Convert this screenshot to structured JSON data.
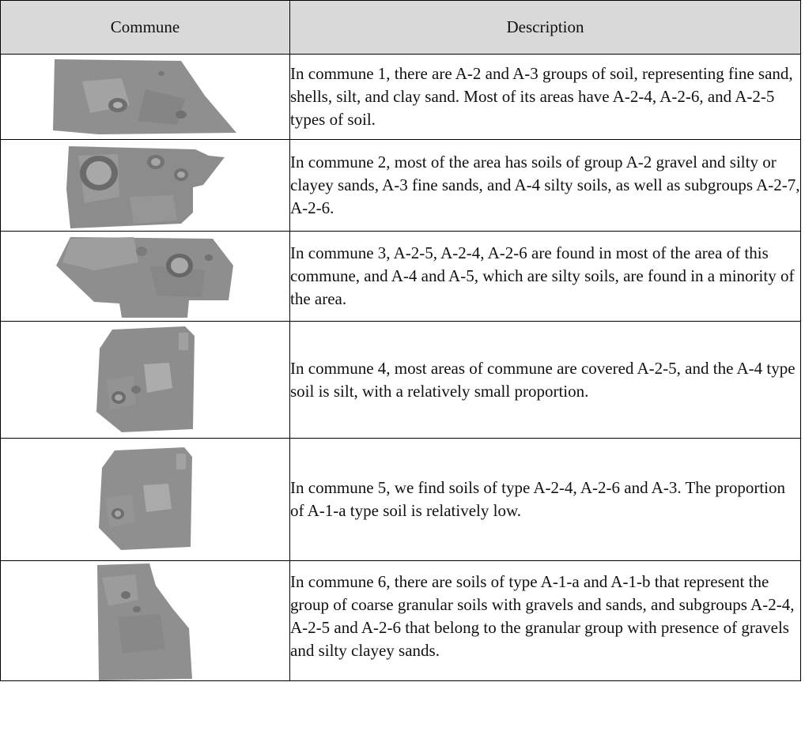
{
  "table": {
    "headers": {
      "commune": "Commune",
      "description": "Description"
    },
    "rows": [
      {
        "description": "In commune 1, there are A-2 and A-3 groups of soil, representing fine sand, shells, silt, and clay sand. Most of its areas have A-2-4, A-2-6, and A-2-5 types of soil."
      },
      {
        "description": "In commune 2, most of the area has soils of group A-2 gravel and silty or clayey sands, A-3 fine sands, and A-4 silty soils, as well as subgroups A-2-7, A-2-6."
      },
      {
        "description": "In commune 3, A-2-5, A-2-4, A-2-6 are found in most of the area of this commune, and A-4 and A-5, which are silty soils, are found in a minority of the area."
      },
      {
        "description": "In commune 4, most areas of commune are covered A-2-5, and the A-4 type soil is silt, with a relatively small proportion."
      },
      {
        "description": "In commune 5, we find soils of type A-2-4, A-2-6 and A-3. The proportion of A-1-a type soil is relatively low."
      },
      {
        "description": "In commune 6, there are soils of type A-1-a and A-1-b that represent the group of coarse granular soils with gravels and sands, and subgroups A-2-4, A-2-5 and A-2-6 that belong to the granular group with presence of gravels and silty clayey sands."
      }
    ]
  }
}
